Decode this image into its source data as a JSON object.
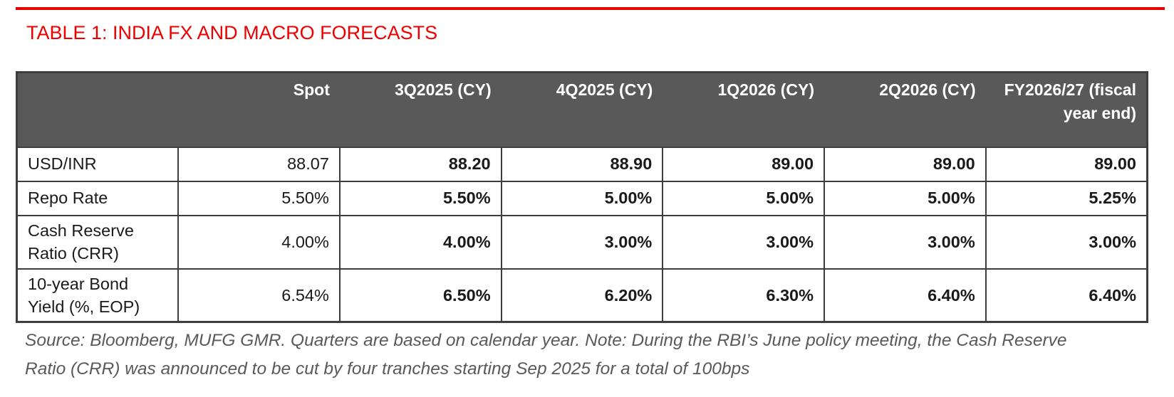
{
  "page": {
    "title": "TABLE 1: INDIA FX AND MACRO FORECASTS",
    "source_note": "Source: Bloomberg, MUFG GMR. Quarters are based on calendar year. Note: During the RBI’s June policy meeting, the Cash Reserve Ratio (CRR) was announced to be cut by four tranches starting Sep 2025 for a total of 100bps"
  },
  "colors": {
    "accent_red": "#ee0000",
    "forecast_value_red": "#c00000",
    "header_background": "#595959",
    "table_border": "#3d3d3d",
    "note_gray": "#595959"
  },
  "chart_data": {
    "type": "table",
    "title": "TABLE 1: INDIA FX AND MACRO FORECASTS",
    "columns": [
      "",
      "Spot",
      "3Q2025 (CY)",
      "4Q2025 (CY)",
      "1Q2026 (CY)",
      "2Q2026 (CY)",
      "FY2026/27 (fiscal year end)"
    ],
    "rows": [
      [
        "USD/INR",
        "88.07",
        "88.20",
        "88.90",
        "89.00",
        "89.00",
        "89.00"
      ],
      [
        "Repo Rate",
        "5.50%",
        "5.50%",
        "5.00%",
        "5.00%",
        "5.00%",
        "5.25%"
      ],
      [
        "Cash Reserve Ratio (CRR)",
        "4.00%",
        "4.00%",
        "3.00%",
        "3.00%",
        "3.00%",
        "3.00%"
      ],
      [
        "10-year Bond Yield (%, EOP)",
        "6.54%",
        "6.50%",
        "6.20%",
        "6.30%",
        "6.40%",
        "6.40%"
      ]
    ]
  }
}
